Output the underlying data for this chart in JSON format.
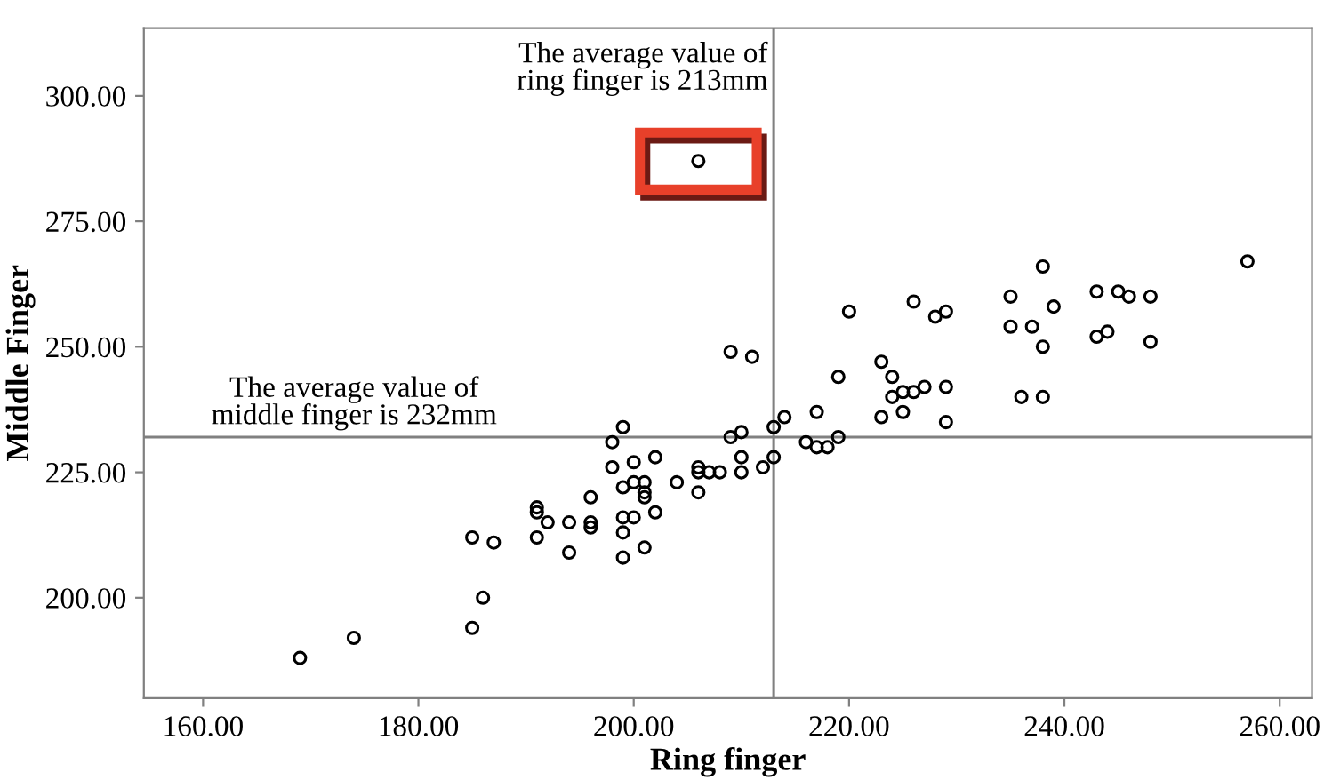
{
  "chart_data": {
    "type": "scatter",
    "xlabel": "Ring finger",
    "ylabel": "Middle Finger",
    "x": [
      169,
      174,
      185,
      187,
      186,
      185,
      191,
      191,
      191,
      192,
      194,
      194,
      196,
      196,
      196,
      198,
      198,
      199,
      199,
      199,
      199,
      199,
      200,
      200,
      200,
      201,
      201,
      201,
      201,
      202,
      202,
      204,
      206,
      206,
      206,
      207,
      208,
      206,
      209,
      211,
      209,
      210,
      210,
      210,
      212,
      213,
      213,
      214,
      216,
      217,
      217,
      218,
      219,
      219,
      220,
      223,
      223,
      224,
      224,
      225,
      225,
      226,
      227,
      226,
      228,
      229,
      229,
      229,
      235,
      235,
      237,
      238,
      238,
      239,
      236,
      238,
      243,
      245,
      246,
      248,
      243,
      244,
      248,
      257
    ],
    "values": [
      188,
      192,
      212,
      211,
      200,
      194,
      218,
      217,
      212,
      215,
      215,
      209,
      220,
      215,
      214,
      231,
      226,
      234,
      222,
      216,
      213,
      208,
      227,
      223,
      216,
      223,
      221,
      220,
      210,
      228,
      217,
      223,
      226,
      221,
      225,
      225,
      225,
      287,
      249,
      248,
      232,
      233,
      228,
      225,
      226,
      228,
      234,
      236,
      231,
      237,
      230,
      230,
      232,
      244,
      257,
      247,
      236,
      244,
      240,
      241,
      237,
      241,
      242,
      259,
      256,
      257,
      242,
      235,
      260,
      254,
      254,
      266,
      250,
      258,
      240,
      240,
      261,
      261,
      260,
      260,
      252,
      253,
      251,
      267
    ],
    "color": "#000000",
    "marker": "circle",
    "grid": false,
    "xlim": [
      154.5,
      263
    ],
    "ylim": [
      180,
      313.5
    ],
    "xticks": [
      {
        "value": 160,
        "label": "160.00"
      },
      {
        "value": 180,
        "label": "180.00"
      },
      {
        "value": 200,
        "label": "200.00"
      },
      {
        "value": 220,
        "label": "220.00"
      },
      {
        "value": 240,
        "label": "240.00"
      },
      {
        "value": 260,
        "label": "260.00"
      }
    ],
    "yticks": [
      {
        "value": 200,
        "label": "200.00"
      },
      {
        "value": 225,
        "label": "225.00"
      },
      {
        "value": 250,
        "label": "250.00"
      },
      {
        "value": 275,
        "label": "275.00"
      },
      {
        "value": 300,
        "label": "300.00"
      }
    ],
    "ref_lines": [
      {
        "axis": "x",
        "value": 213,
        "label": "The average value of\nring finger is 213mm",
        "color": "#808080"
      },
      {
        "axis": "y",
        "value": 232,
        "label": "The average value of\nmiddle finger is 232mm",
        "color": "#808080"
      }
    ]
  }
}
